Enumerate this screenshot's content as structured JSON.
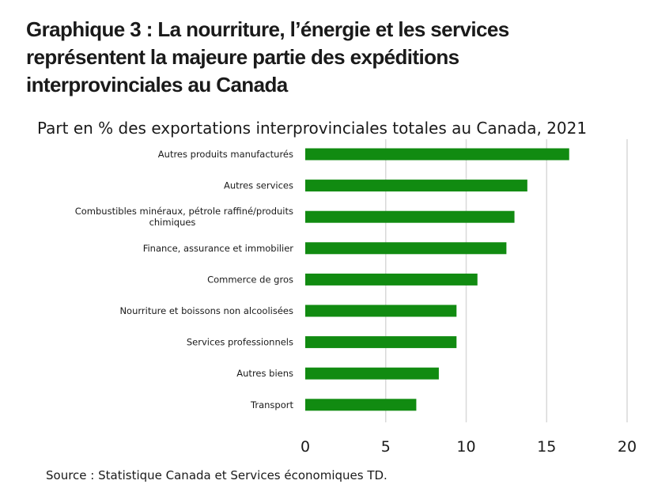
{
  "title": "Graphique 3 : La nourriture, l’énergie et les services représentent la majeure partie des expéditions interprovinciales au Canada",
  "source": "Source : Statistique Canada et Services économiques TD.",
  "colors": {
    "bar": "#118B11",
    "grid": "#d9d9d9",
    "text": "#1a1a1a"
  },
  "chart_data": {
    "type": "bar",
    "orientation": "horizontal",
    "subtitle": "Part en % des exportations interprovinciales totales au Canada, 2021",
    "categories": [
      [
        "Autres produits manufacturés"
      ],
      [
        "Autres services"
      ],
      [
        "Combustibles minéraux, pétrole raffiné/produits",
        "chimiques"
      ],
      [
        "Finance, assurance et immobilier"
      ],
      [
        "Commerce de gros"
      ],
      [
        "Nourriture et boissons non alcoolisées"
      ],
      [
        "Services professionnels"
      ],
      [
        "Autres biens"
      ],
      [
        "Transport"
      ]
    ],
    "values": [
      16.4,
      13.8,
      13.0,
      12.5,
      10.7,
      9.4,
      9.4,
      8.3,
      6.9
    ],
    "xlim": [
      0,
      20
    ],
    "xticks": [
      "0",
      "5",
      "10",
      "15",
      "20"
    ],
    "grid": "vertical",
    "legend": "none"
  }
}
